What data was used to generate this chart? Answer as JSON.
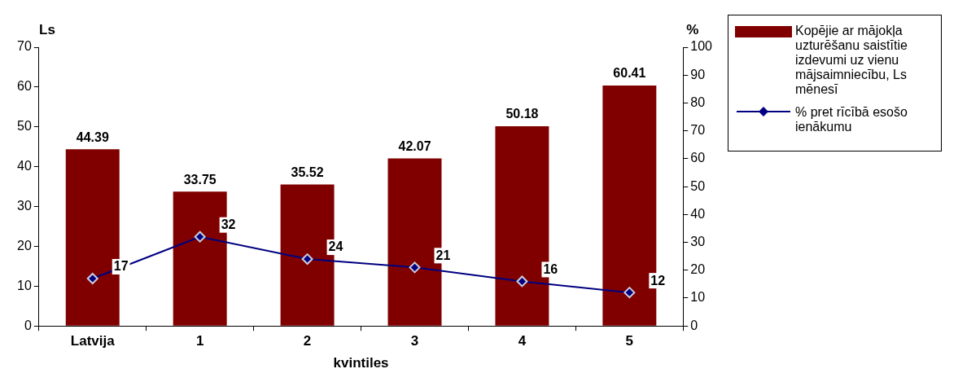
{
  "chart_data": {
    "type": "bar",
    "xlabel": "kvintiles",
    "ylabel": "Ls",
    "y2label": "%",
    "categories": [
      "Latvija",
      "1",
      "2",
      "3",
      "4",
      "5"
    ],
    "series": [
      {
        "name": "Kopējie ar mājokļa uzturēšanu saistītie izdevumi uz vienu mājsaimniecību, Ls mēnesī",
        "color": "#800000",
        "values": [
          44.39,
          33.75,
          35.52,
          42.07,
          50.18,
          60.41
        ]
      },
      {
        "name": "% pret rīcībā esošo ienākumu",
        "type": "line",
        "axis": "y2",
        "color": "#000080",
        "marker": "diamond",
        "values": [
          17,
          32,
          24,
          21,
          16,
          12
        ]
      }
    ],
    "ylim": [
      0,
      70
    ],
    "yticks": [
      0,
      10,
      20,
      30,
      40,
      50,
      60,
      70
    ],
    "y2lim": [
      0,
      100
    ],
    "y2ticks": [
      0,
      10,
      20,
      30,
      40,
      50,
      60,
      70,
      80,
      90,
      100
    ],
    "grid": false,
    "legend": "right",
    "data_labels": true
  }
}
